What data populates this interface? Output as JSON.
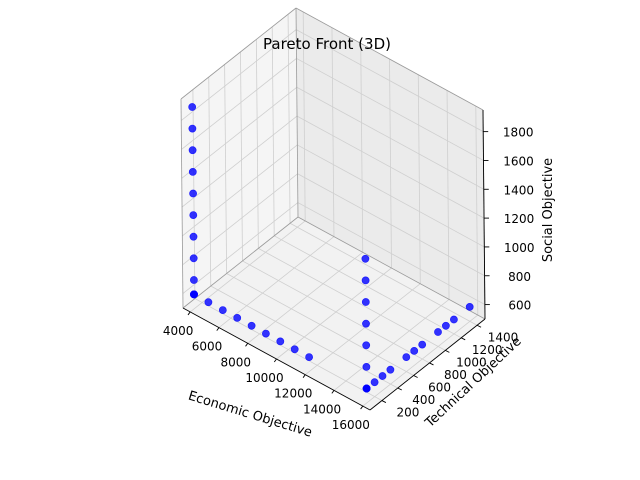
{
  "chart_data": {
    "type": "scatter",
    "title": "Pareto Front (3D)",
    "xlabel": "Economic Objective",
    "ylabel": "Technical Objective",
    "zlabel": "Social Objective",
    "x_ticks": [
      "4000",
      "6000",
      "8000",
      "10000",
      "12000",
      "14000",
      "16000"
    ],
    "y_ticks": [
      "200",
      "400",
      "600",
      "800",
      "1000",
      "1200",
      "1400"
    ],
    "z_ticks": [
      "600",
      "800",
      "1000",
      "1200",
      "1400",
      "1600",
      "1800"
    ],
    "xlim": [
      3500,
      16500
    ],
    "ylim": [
      50,
      1500
    ],
    "zlim": [
      500,
      1950
    ],
    "grid": true,
    "marker_color": "#0000ff",
    "x": [
      4000,
      4000,
      4000,
      4000,
      4000,
      4000,
      4000,
      4000,
      4000,
      4000,
      4000,
      4000,
      4000,
      5000,
      6000,
      7000,
      8000,
      9000,
      10000,
      11000,
      12000,
      16000,
      16000,
      16000,
      16000,
      16000,
      16000,
      16000,
      16000,
      16000,
      16000,
      16000,
      16000,
      16000,
      16000,
      16000,
      16000,
      16000,
      16000,
      16000,
      16000
    ],
    "y": [
      100,
      100,
      100,
      100,
      100,
      100,
      100,
      100,
      100,
      100,
      100,
      100,
      100,
      100,
      100,
      100,
      100,
      100,
      100,
      100,
      100,
      100,
      100,
      100,
      100,
      100,
      100,
      100,
      100,
      100,
      100,
      200,
      300,
      400,
      600,
      700,
      800,
      1000,
      1100,
      1200,
      1400
    ],
    "z": [
      1900,
      1750,
      1600,
      1450,
      1300,
      1150,
      1000,
      850,
      700,
      600,
      600,
      600,
      600,
      600,
      600,
      600,
      600,
      600,
      600,
      600,
      600,
      1500,
      1350,
      1200,
      1050,
      900,
      750,
      600,
      600,
      600,
      600,
      600,
      600,
      600,
      600,
      600,
      600,
      600,
      600,
      600,
      600
    ]
  }
}
